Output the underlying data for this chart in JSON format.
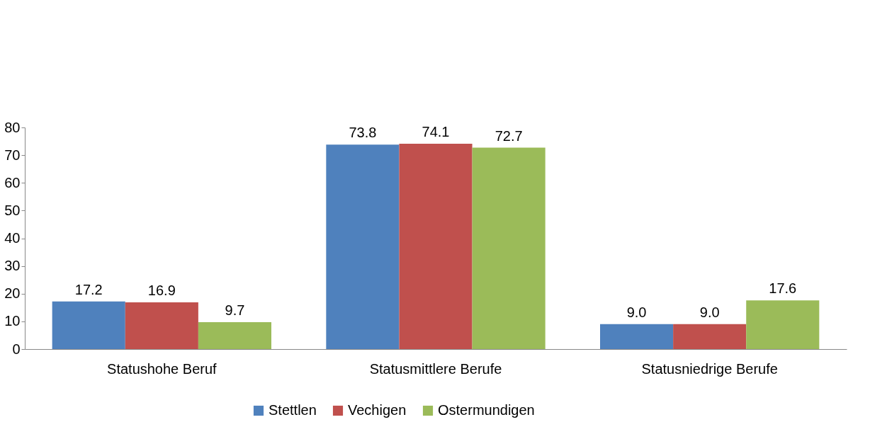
{
  "chart_data": {
    "type": "bar",
    "categories": [
      "Statushohe Beruf",
      "Statusmittlere Berufe",
      "Statusniedrige Berufe"
    ],
    "series": [
      {
        "name": "Stettlen",
        "color": "#4f81bd",
        "values": [
          17.2,
          73.8,
          9.0
        ],
        "value_labels": [
          "17.2",
          "73.8",
          "9.0"
        ]
      },
      {
        "name": "Vechigen",
        "color": "#c0504d",
        "values": [
          16.9,
          74.1,
          9.0
        ],
        "value_labels": [
          "16.9",
          "74.1",
          "9.0"
        ]
      },
      {
        "name": "Ostermundigen",
        "color": "#9bbb59",
        "values": [
          9.7,
          72.7,
          17.6
        ],
        "value_labels": [
          "9.7",
          "72.7",
          "17.6"
        ]
      }
    ],
    "ylim": [
      0,
      80
    ],
    "yticks": [
      0,
      10,
      20,
      30,
      40,
      50,
      60,
      70,
      80
    ],
    "grid": false,
    "legend": "bottom"
  }
}
